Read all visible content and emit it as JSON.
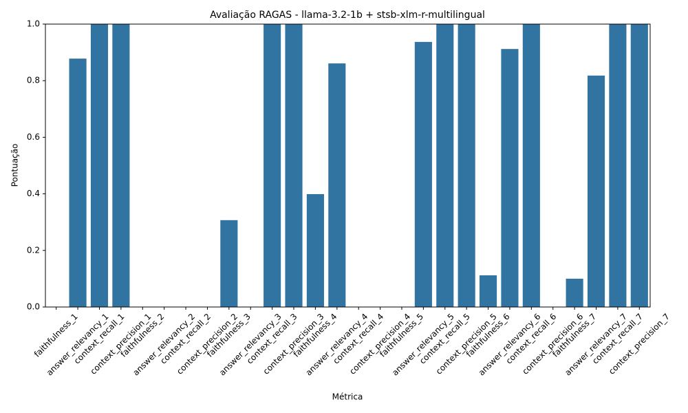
{
  "chart_data": {
    "type": "bar",
    "title": "Avaliação RAGAS - llama-3.2-1b + stsb-xlm-r-multilingual",
    "x_label": "Métrica",
    "y_label": "Pontuação",
    "categories": [
      "faithfulness_1",
      "answer_relevancy_1",
      "context_recall_1",
      "context_precision_1",
      "faithfulness_2",
      "answer_relevancy_2",
      "context_recall_2",
      "context_precision_2",
      "faithfulness_3",
      "answer_relevancy_3",
      "context_recall_3",
      "context_precision_3",
      "faithfulness_4",
      "answer_relevancy_4",
      "context_recall_4",
      "context_precision_4",
      "faithfulness_5",
      "answer_relevancy_5",
      "context_recall_5",
      "context_precision_5",
      "faithfulness_6",
      "answer_relevancy_6",
      "context_recall_6",
      "context_precision_6",
      "faithfulness_7",
      "answer_relevancy_7",
      "context_recall_7",
      "context_precision_7"
    ],
    "values": [
      0,
      0.878,
      1.0,
      1.0,
      0,
      0,
      0,
      0,
      0.307,
      0,
      1.0,
      1.0,
      0.399,
      0.861,
      0,
      0,
      0,
      0.937,
      1.0,
      1.0,
      0.112,
      0.912,
      1.0,
      0,
      0.1,
      0.818,
      1.0,
      1.0
    ],
    "color": "#3274a1",
    "ylim": [
      0,
      1
    ],
    "yticks": [
      {
        "value": 0,
        "label": "0.0"
      },
      0.2,
      0.4,
      0.6,
      0.8,
      {
        "value": 1,
        "label": "1.0"
      }
    ],
    "grid": false
  }
}
